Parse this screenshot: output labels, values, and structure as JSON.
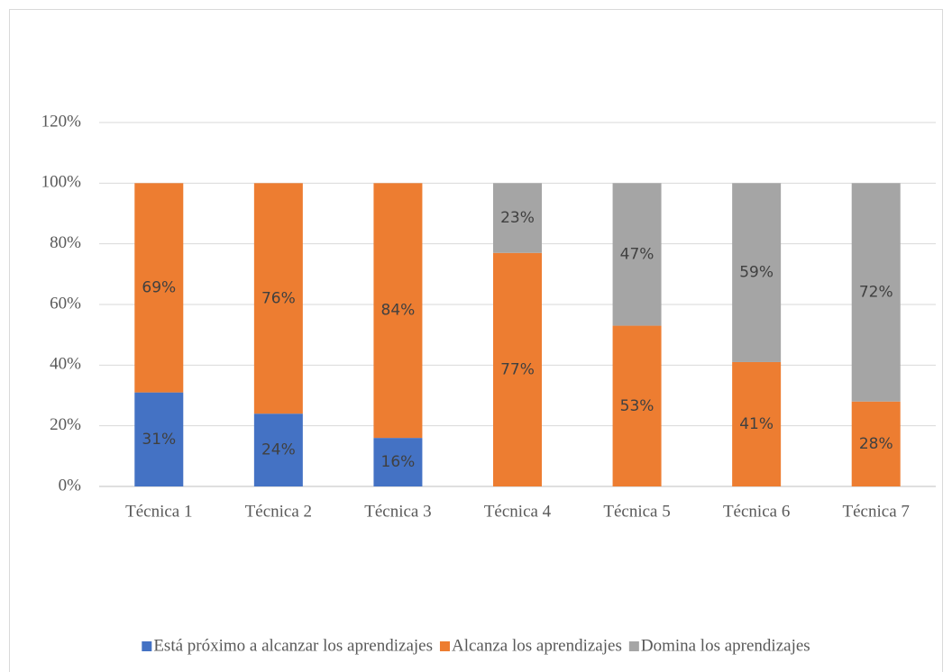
{
  "chart_data": {
    "type": "bar",
    "stacked": true,
    "categories": [
      "Técnica 1",
      "Técnica 2",
      "Técnica 3",
      "Técnica 4",
      "Técnica 5",
      "Técnica 6",
      "Técnica 7"
    ],
    "series": [
      {
        "name": "Está próximo a alcanzar los aprendizajes",
        "color": "#4472c4",
        "values": [
          31,
          24,
          16,
          null,
          null,
          null,
          null
        ],
        "value_labels": [
          "31%",
          "24%",
          "16%",
          null,
          null,
          null,
          null
        ]
      },
      {
        "name": "Alcanza los aprendizajes",
        "color": "#ed7d31",
        "values": [
          69,
          76,
          84,
          77,
          53,
          41,
          28
        ],
        "value_labels": [
          "69%",
          "76%",
          "84%",
          "77%",
          "53%",
          "41%",
          "28%"
        ]
      },
      {
        "name": "Domina los aprendizajes",
        "color": "#a5a5a5",
        "values": [
          null,
          null,
          null,
          23,
          47,
          59,
          72
        ],
        "value_labels": [
          null,
          null,
          null,
          "23%",
          "47%",
          "59%",
          "72%"
        ]
      }
    ],
    "ylim": [
      0,
      120
    ],
    "yticks": [
      {
        "value": 0,
        "label": "0%"
      },
      {
        "value": 20,
        "label": "20%"
      },
      {
        "value": 40,
        "label": "40%"
      },
      {
        "value": 60,
        "label": "60%"
      },
      {
        "value": 80,
        "label": "80%"
      },
      {
        "value": 100,
        "label": "100%"
      },
      {
        "value": 120,
        "label": "120%"
      }
    ],
    "grid": true,
    "legend": "bottom"
  }
}
